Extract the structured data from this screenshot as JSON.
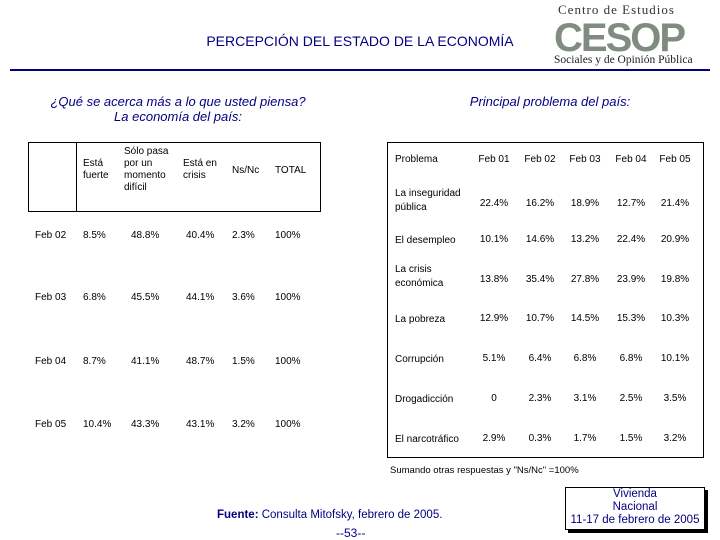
{
  "title": "PERCEPCIÓN DEL ESTADO DE LA ECONOMÍA",
  "logo": {
    "top_text": "Centro de Estudios",
    "big_text": "CESOP",
    "bottom_text": "Sociales y de Opinión Pública",
    "color_main": "#7f8c7f"
  },
  "question_left": [
    "¿Qué se acerca más a lo que usted piensa?",
    "La economía del país:"
  ],
  "question_right": "Principal problema del país:",
  "table_economy": {
    "headers": [
      [
        "Está",
        "fuerte"
      ],
      [
        "Sólo pasa",
        "por un",
        "momento",
        "difícil"
      ],
      [
        "Está en",
        "crisis"
      ],
      [
        "Ns/Nc"
      ],
      [
        "TOTAL"
      ]
    ],
    "rows": [
      {
        "label": "Feb 02",
        "values": [
          "8.5%",
          "48.8%",
          "40.4%",
          "2.3%",
          "100%"
        ]
      },
      {
        "label": "Feb 03",
        "values": [
          "6.8%",
          "45.5%",
          "44.1%",
          "3.6%",
          "100%"
        ]
      },
      {
        "label": "Feb 04",
        "values": [
          "8.7%",
          "41.1%",
          "48.7%",
          "1.5%",
          "100%"
        ]
      },
      {
        "label": "Feb 05",
        "values": [
          "10.4%",
          "43.3%",
          "43.1%",
          "3.2%",
          "100%"
        ]
      }
    ]
  },
  "table_problems": {
    "header_label": "Problema",
    "columns": [
      "Feb 01",
      "Feb 02",
      "Feb 03",
      "Feb 04",
      "Feb 05"
    ],
    "rows": [
      {
        "label": [
          "La inseguridad",
          "pública"
        ],
        "values": [
          "22.4%",
          "16.2%",
          "18.9%",
          "12.7%",
          "21.4%"
        ]
      },
      {
        "label": [
          "El desempleo"
        ],
        "values": [
          "10.1%",
          "14.6%",
          "13.2%",
          "22.4%",
          "20.9%"
        ]
      },
      {
        "label": [
          "La crisis",
          "económica"
        ],
        "values": [
          "13.8%",
          "35.4%",
          "27.8%",
          "23.9%",
          "19.8%"
        ]
      },
      {
        "label": [
          "La pobreza"
        ],
        "values": [
          "12.9%",
          "10.7%",
          "14.5%",
          "15.3%",
          "10.3%"
        ]
      },
      {
        "label": [
          "Corrupción"
        ],
        "values": [
          "5.1%",
          "6.4%",
          "6.8%",
          "6.8%",
          "10.1%"
        ]
      },
      {
        "label": [
          "Drogadicción"
        ],
        "values": [
          "0",
          "2.3%",
          "3.1%",
          "2.5%",
          "3.5%"
        ]
      },
      {
        "label": [
          "El narcotráfico"
        ],
        "values": [
          "2.9%",
          "0.3%",
          "1.7%",
          "1.5%",
          "3.2%"
        ]
      }
    ]
  },
  "note": "Sumando otras respuestas y \"Ns/Nc\" =100%",
  "source_label": "Fuente:",
  "source_text": "Consulta Mitofsky, febrero de 2005.",
  "page_number": "--53--",
  "survey_box": [
    "Vivienda",
    "Nacional",
    "11-17 de febrero de 2005"
  ]
}
